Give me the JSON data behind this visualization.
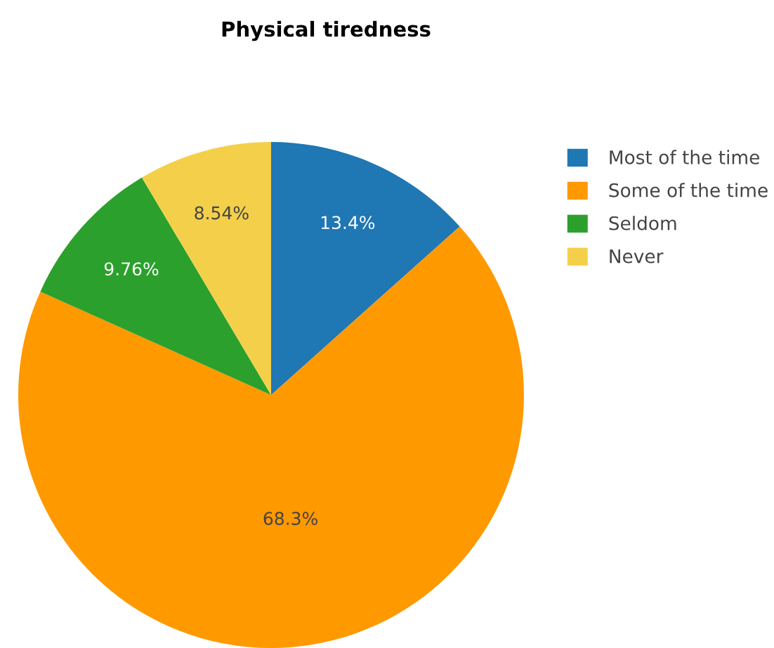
{
  "chart_data": {
    "type": "pie",
    "title": "Physical tiredness",
    "categories": [
      "Most of the time",
      "Some of the time",
      "Seldom",
      "Never"
    ],
    "values": [
      13.4,
      68.3,
      9.76,
      8.54
    ],
    "colors": [
      "#1f77b4",
      "#ff9900",
      "#2ca02c",
      "#f4d04a"
    ],
    "value_labels": [
      "13.4%",
      "68.3%",
      "9.76%",
      "8.54%"
    ],
    "legend": "top right"
  }
}
